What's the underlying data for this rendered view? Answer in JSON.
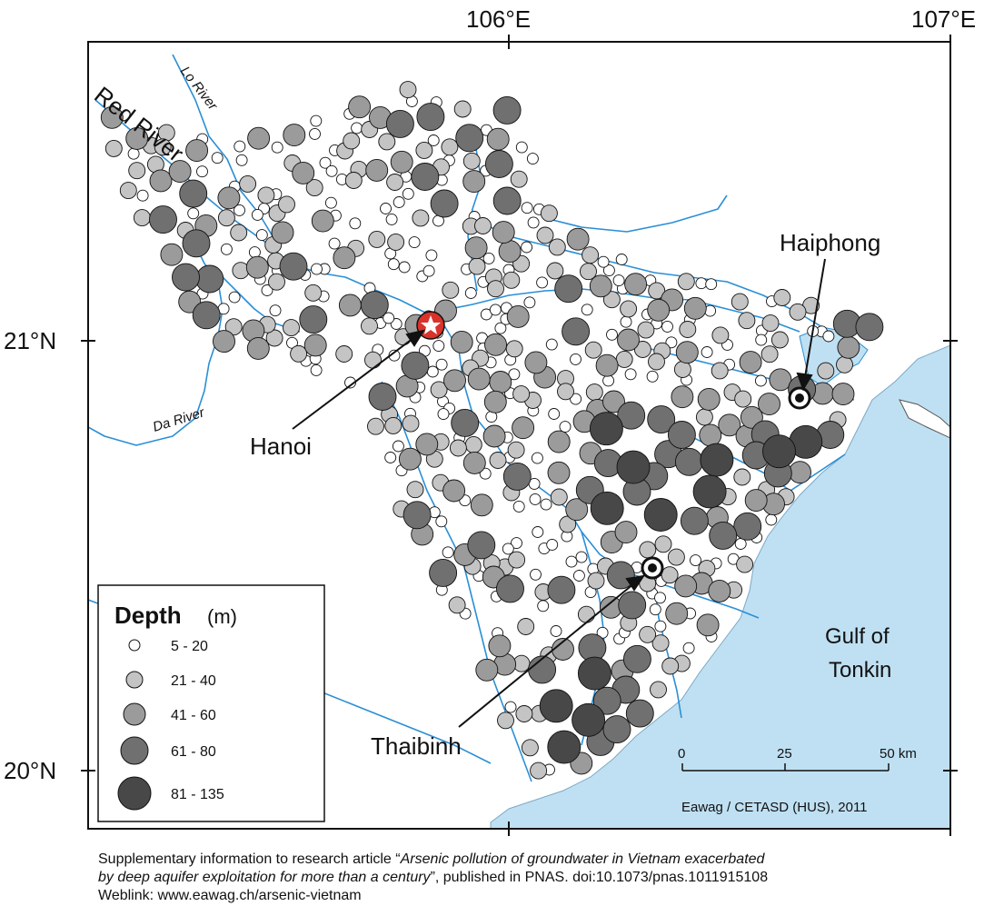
{
  "axes": {
    "lon": [
      "106°E",
      "107°E"
    ],
    "lat": [
      "21°N",
      "20°N"
    ]
  },
  "rivers": {
    "red": "Red River",
    "lo": "Lo River",
    "da": "Da River"
  },
  "cities": {
    "hanoi": "Hanoi",
    "haiphong": "Haiphong",
    "thaibinh": "Thaibinh"
  },
  "sea": {
    "line1": "Gulf of",
    "line2": "Tonkin"
  },
  "legend": {
    "title": "Depth",
    "unit": "(m)",
    "classes": [
      {
        "label": "5 - 20",
        "color": "#ffffff"
      },
      {
        "label": "21 - 40",
        "color": "#c4c4c4"
      },
      {
        "label": "41 - 60",
        "color": "#9b9b9b"
      },
      {
        "label": "61 - 80",
        "color": "#707070"
      },
      {
        "label": "81 - 135",
        "color": "#484848"
      }
    ]
  },
  "scale": {
    "ticks": [
      "0",
      "25",
      "50 km"
    ]
  },
  "credit": "Eawag / CETASD (HUS), 2011",
  "footer": {
    "prefix": "Supplementary information to research article “",
    "title_line1": "Arsenic pollution of groundwater in Vietnam exacerbated",
    "title_line2": "by deep aquifer exploitation for more than a century",
    "suffix": "”, published in PNAS. doi:10.1073/pnas.1011915108",
    "weblink": "Weblink: www.eawag.ch/arsenic-vietnam"
  },
  "colors": {
    "sea": "#bfe0f2",
    "river": "#2a8fd6",
    "frame": "#000000",
    "hanoi_marker": "#d9332b"
  }
}
